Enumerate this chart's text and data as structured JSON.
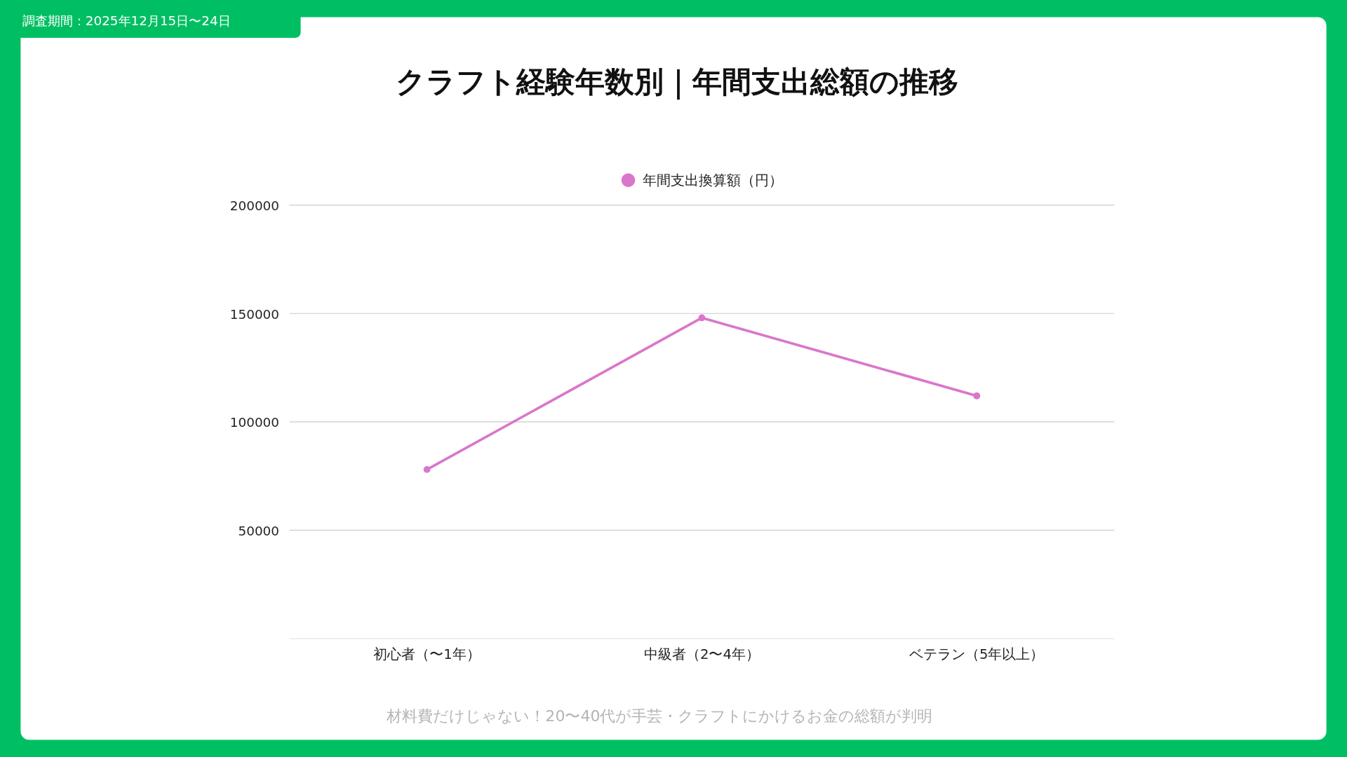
{
  "chart_data": {
    "type": "line",
    "title": "クラフト経験年数別｜年間支出総額の推移",
    "annotations": [
      "調査期間：2025年12月15日〜24日",
      "材料費だけじゃない！20〜40代が手芸・クラフトにかけるお金の総額が判明"
    ],
    "categories": [
      "初心者（〜1年）",
      "中級者（2〜4年）",
      "ベテラン（5年以上）"
    ],
    "series": [
      {
        "name": "年間支出換算額（円）",
        "color": "#d977cb",
        "values": [
          78000,
          148000,
          112000
        ]
      }
    ],
    "ylim": [
      0,
      200000
    ],
    "yticks": [
      50000,
      100000,
      150000,
      200000
    ],
    "grid": "y",
    "legend": "top",
    "marker": "circle"
  }
}
